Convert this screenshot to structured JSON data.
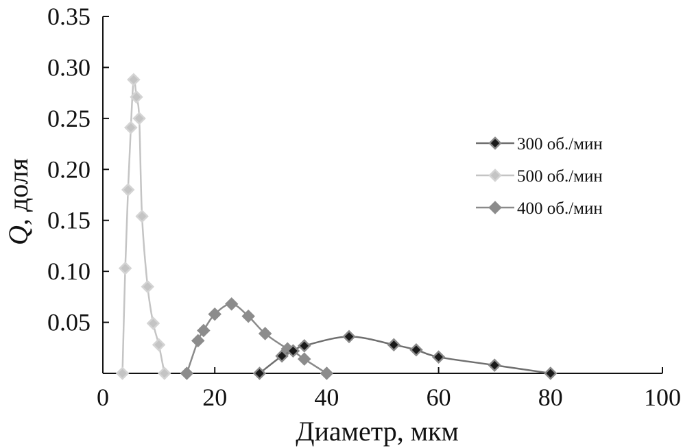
{
  "chart_data": {
    "type": "scatter",
    "xlabel": "Диаметр, мкм",
    "ylabel_italic": "Q",
    "ylabel_rest": ", доля",
    "xlim": [
      0,
      100
    ],
    "ylim": [
      0,
      0.35
    ],
    "x_ticks": [
      "0",
      "20",
      "40",
      "60",
      "80",
      "100"
    ],
    "y_ticks": [
      "0.35",
      "0.30",
      "0.25",
      "0.20",
      "0.15",
      "0.10",
      "0.05"
    ],
    "grid": false,
    "legend_position": "right",
    "series": [
      {
        "name": "300 об./мин",
        "line_color": "#6f6f6f",
        "marker_fill": "#1a1a1a",
        "marker_stroke": "#8a8a8a",
        "x": [
          28,
          32,
          34,
          36,
          44,
          52,
          56,
          60,
          70,
          80
        ],
        "y": [
          0.0,
          0.017,
          0.022,
          0.027,
          0.036,
          0.028,
          0.023,
          0.016,
          0.008,
          0.0
        ]
      },
      {
        "name": "500 об./мин",
        "line_color": "#c4c4c4",
        "marker_fill": "#c4c4c4",
        "marker_stroke": "#d4d4d4",
        "x": [
          3.5,
          4,
          4.5,
          5,
          5.5,
          6,
          6.5,
          7,
          8,
          9,
          10,
          11
        ],
        "y": [
          0.0,
          0.103,
          0.18,
          0.241,
          0.288,
          0.271,
          0.25,
          0.154,
          0.085,
          0.049,
          0.028,
          0.0
        ]
      },
      {
        "name": "400 об./мин",
        "line_color": "#8a8a8a",
        "marker_fill": "#8c8c8c",
        "marker_stroke": "#8c8c8c",
        "x": [
          15,
          17,
          18,
          20,
          23,
          26,
          29,
          33,
          34,
          36,
          40
        ],
        "y": [
          0.0,
          0.032,
          0.042,
          0.058,
          0.068,
          0.056,
          0.039,
          0.024,
          0.022,
          0.014,
          0.0
        ]
      }
    ]
  }
}
